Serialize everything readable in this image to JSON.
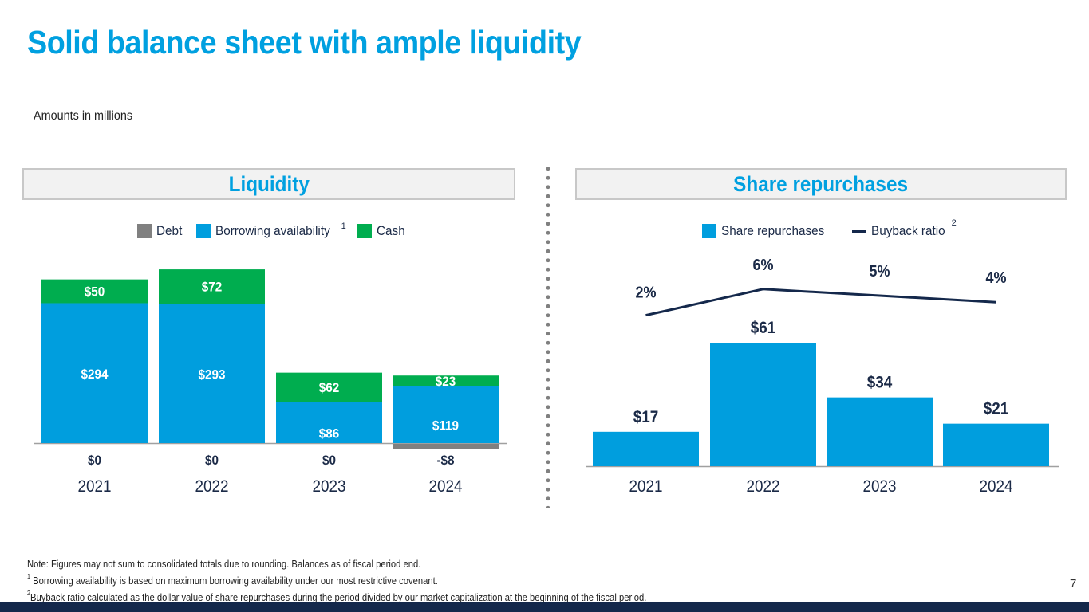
{
  "page": {
    "title": "Solid balance sheet with ample liquidity",
    "subtitle": "Amounts in millions",
    "page_number": "7"
  },
  "colors": {
    "accent": "#00a0e0",
    "debt": "#808080",
    "borrowing": "#009ede",
    "cash": "#00ad4f",
    "line": "#14284b",
    "footer": "#14284b"
  },
  "panels": {
    "liquidity": {
      "header": "Liquidity",
      "legend": [
        {
          "label": "Debt",
          "sup": "",
          "color": "#808080",
          "icon": "square-swatch"
        },
        {
          "label": "Borrowing availability",
          "sup": "1",
          "color": "#009ede",
          "icon": "square-swatch"
        },
        {
          "label": "Cash",
          "sup": "",
          "color": "#00ad4f",
          "icon": "square-swatch"
        }
      ]
    },
    "repurchases": {
      "header": "Share repurchases",
      "legend": [
        {
          "label": "Share repurchases",
          "sup": "",
          "color": "#009ede",
          "icon": "square-swatch"
        },
        {
          "label": "Buyback ratio",
          "sup": "2",
          "color": "#14284b",
          "icon": "line-swatch"
        }
      ]
    }
  },
  "chart_data": [
    {
      "type": "bar",
      "stacked": true,
      "title": "Liquidity",
      "categories": [
        "2021",
        "2022",
        "2023",
        "2024"
      ],
      "series": [
        {
          "name": "Debt",
          "values": [
            0,
            0,
            0,
            -8
          ],
          "labels": [
            "$0",
            "$0",
            "$0",
            "-$8"
          ]
        },
        {
          "name": "Borrowing availability",
          "values": [
            294,
            293,
            86,
            119
          ],
          "labels": [
            "$294",
            "$293",
            "$86",
            "$119"
          ]
        },
        {
          "name": "Cash",
          "values": [
            50,
            72,
            62,
            23
          ],
          "labels": [
            "$50",
            "$72",
            "$62",
            "$23"
          ]
        }
      ],
      "xlabel": "",
      "ylabel": "",
      "ylim": [
        -8,
        365
      ],
      "grid": false,
      "legend": "top-center"
    },
    {
      "type": "bar",
      "title": "Share repurchases",
      "categories": [
        "2021",
        "2022",
        "2023",
        "2024"
      ],
      "series": [
        {
          "name": "Share repurchases",
          "type": "bar",
          "values": [
            17,
            61,
            34,
            21
          ],
          "labels": [
            "$17",
            "$61",
            "$34",
            "$21"
          ]
        },
        {
          "name": "Buyback ratio",
          "type": "line",
          "values": [
            2,
            6,
            5,
            4
          ],
          "labels": [
            "2%",
            "6%",
            "5%",
            "4%"
          ]
        }
      ],
      "xlabel": "",
      "ylabel": "",
      "ylim": [
        0,
        70
      ],
      "grid": false,
      "legend": "top-center"
    }
  ],
  "notes": {
    "note": "Note: Figures may not sum to consolidated totals due to rounding. Balances as of fiscal period end.",
    "footnote1_mark": "1",
    "footnote1": " Borrowing availability is based on maximum borrowing availability under our most restrictive covenant.",
    "footnote2_mark": "2",
    "footnote2": "Buyback ratio calculated as the dollar value of share repurchases during the period divided by our market capitalization at the beginning of the fiscal period."
  }
}
